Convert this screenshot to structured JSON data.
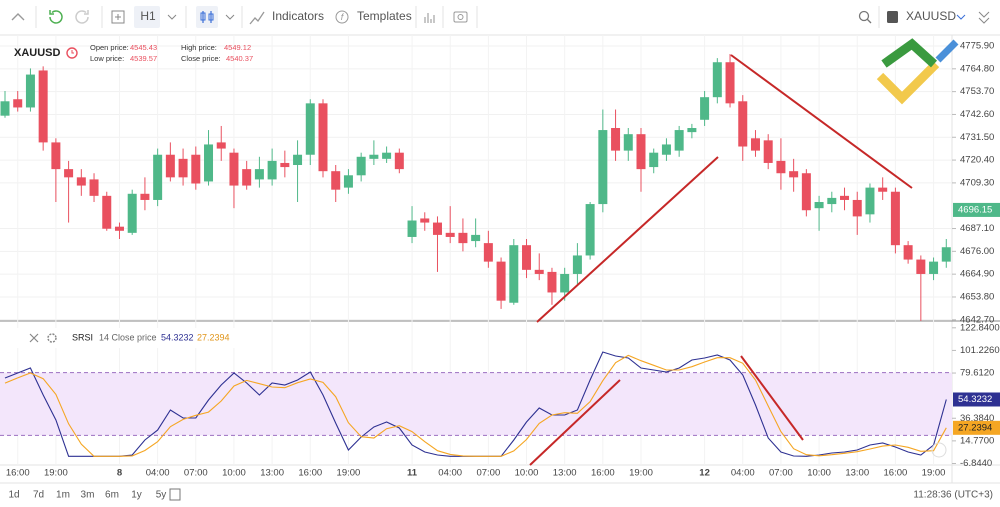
{
  "toolbar": {
    "timeframe": "H1",
    "indicators": "Indicators",
    "templates": "Templates",
    "symbol": "XAUUSD"
  },
  "chart_data": [
    {
      "type": "candlestick",
      "symbol": "XAUUSD",
      "info": [
        {
          "label": "Open price:",
          "value": 4545.43
        },
        {
          "label": "Low price:",
          "value": 4539.57
        },
        {
          "label": "High price:",
          "value": 4549.12
        },
        {
          "label": "Close price:",
          "value": 4540.37
        }
      ],
      "categories": [
        null,
        "16:00",
        null,
        null,
        "19:00",
        null,
        null,
        null,
        null,
        "8",
        null,
        null,
        "04:00",
        null,
        null,
        "07:00",
        null,
        null,
        "10:00",
        null,
        null,
        "13:00",
        null,
        null,
        "16:00",
        null,
        null,
        "19:00",
        null,
        null,
        null,
        null,
        "11",
        null,
        null,
        "04:00",
        null,
        null,
        "07:00",
        null,
        null,
        "10:00",
        null,
        null,
        "13:00",
        null,
        null,
        "16:00",
        null,
        null,
        "19:00",
        null,
        null,
        null,
        null,
        "12",
        null,
        null,
        "04:00",
        null,
        null,
        "07:00",
        null,
        null,
        "10:00",
        null,
        null,
        "13:00",
        null,
        null,
        "16:00",
        null,
        null,
        "19:00",
        null
      ],
      "open": [
        4742,
        4750,
        4746,
        4764,
        4729,
        4716,
        4712,
        4711,
        4703,
        4688,
        4685,
        4704,
        4701,
        4723,
        4721,
        4723,
        4710,
        4729,
        4724,
        4716,
        4711,
        4711,
        4719,
        4718,
        4723,
        4748,
        4715,
        4707,
        4713,
        4721,
        4721,
        4724,
        4683,
        4692,
        4690,
        4685,
        4685,
        4681,
        4680,
        4671,
        4651,
        4679,
        4667,
        4666,
        4656,
        4665,
        4674,
        4699,
        4736,
        4725,
        4733,
        4717,
        4723,
        4725,
        4734,
        4740,
        4751,
        4768,
        4749,
        4731,
        4730,
        4720,
        4715,
        4714,
        4697,
        4699,
        4703,
        4701,
        4694,
        4707,
        4705,
        4679,
        4672,
        4665,
        4671
      ],
      "high": [
        4754,
        4754,
        4765,
        4766,
        4731,
        4720,
        4716,
        4714,
        4705,
        4690,
        4706,
        4712,
        4726,
        4729,
        4726,
        4727,
        4735,
        4737,
        4726,
        4720,
        4722,
        4726,
        4725,
        4730,
        4750,
        4750,
        4718,
        4716,
        4724,
        4730,
        4727,
        4726,
        4698,
        4695,
        4693,
        4698,
        4692,
        4692,
        4686,
        4673,
        4682,
        4682,
        4675,
        4668,
        4668,
        4680,
        4700,
        4745,
        4745,
        4736,
        4736,
        4726,
        4731,
        4737,
        4738,
        4754,
        4770,
        4772,
        4752,
        4735,
        4733,
        4731,
        4721,
        4716,
        4703,
        4705,
        4707,
        4705,
        4709,
        4712,
        4707,
        4681,
        4674,
        4673,
        4682
      ],
      "low": [
        4741,
        4744,
        4744,
        4725,
        4700,
        4690,
        4703,
        4700,
        4686,
        4682,
        4684,
        4696,
        4698,
        4710,
        4708,
        4706,
        4708,
        4720,
        4697,
        4706,
        4707,
        4708,
        4712,
        4700,
        4718,
        4712,
        4700,
        4704,
        4710,
        4718,
        4719,
        4714,
        4680,
        4686,
        4666,
        4680,
        4676,
        4678,
        4668,
        4648,
        4650,
        4663,
        4662,
        4650,
        4652,
        4660,
        4672,
        4695,
        4720,
        4720,
        4705,
        4714,
        4720,
        4722,
        4731,
        4737,
        4748,
        4746,
        4720,
        4722,
        4716,
        4706,
        4705,
        4693,
        4686,
        4695,
        4696,
        4684,
        4690,
        4701,
        4675,
        4670,
        4640,
        4662,
        4668
      ],
      "close": [
        4749,
        4746,
        4762,
        4729,
        4716,
        4712,
        4708,
        4703,
        4687,
        4686,
        4704,
        4701,
        4723,
        4712,
        4712,
        4709,
        4728,
        4726,
        4708,
        4708,
        4716,
        4720,
        4717,
        4723,
        4748,
        4715,
        4706,
        4713,
        4722,
        4723,
        4724,
        4716,
        4691,
        4690,
        4684,
        4683,
        4680,
        4684,
        4671,
        4652,
        4679,
        4667,
        4665,
        4656,
        4665,
        4674,
        4699,
        4735,
        4725,
        4733,
        4716,
        4724,
        4728,
        4735,
        4736,
        4751,
        4768,
        4748,
        4727,
        4725,
        4719,
        4714,
        4712,
        4696,
        4700,
        4702,
        4701,
        4693,
        4707,
        4705,
        4679,
        4672,
        4665,
        4671,
        4678
      ],
      "up_color": "#4fb889",
      "down_color": "#e9505f",
      "last_price": 4696.15,
      "ylim": [
        4642.6,
        4781.25
      ],
      "yticks": [
        {
          "value": 4775.9,
          "label": "4775.90"
        },
        {
          "value": 4764.8,
          "label": "4764.80"
        },
        {
          "value": 4753.7,
          "label": "4753.70"
        },
        {
          "value": 4742.6,
          "label": "4742.60"
        },
        {
          "value": 4731.5,
          "label": "4731.50"
        },
        {
          "value": 4720.4,
          "label": "4720.40"
        },
        {
          "value": 4709.3,
          "label": "4709.30"
        },
        {
          "value": 4687.1,
          "label": "4687.10"
        },
        {
          "value": 4676,
          "label": "4676.00"
        },
        {
          "value": 4664.9,
          "label": "4664.90"
        },
        {
          "value": 4653.8,
          "label": "4653.80"
        },
        {
          "value": 4642.7,
          "label": "4642.70"
        }
      ],
      "grid": true
    },
    {
      "type": "line",
      "name": "SRSI",
      "params": "14 Close price",
      "series": [
        {
          "color": "#2e3192",
          "values": [
            74.9,
            79.6,
            84.4,
            58.6,
            34.7,
            0,
            0,
            0,
            0,
            0,
            1.3,
            15.6,
            25.1,
            44.3,
            36.6,
            36.6,
            53.8,
            68.2,
            79.6,
            70.1,
            58.6,
            70.1,
            68.2,
            73,
            80.6,
            58.6,
            31.8,
            6,
            18.5,
            28,
            32.8,
            27.1,
            10.8,
            4.1,
            1.3,
            0,
            0,
            0,
            0,
            0,
            15.6,
            32.8,
            46.2,
            39.5,
            39.5,
            44.3,
            73,
            99.7,
            95.9,
            94,
            84.4,
            82.5,
            80.6,
            84.4,
            92.1,
            94,
            96.9,
            92.1,
            77.7,
            49.1,
            17.5,
            4.1,
            0.3,
            0,
            1.3,
            3.2,
            4.1,
            6,
            10.8,
            12.7,
            8.9,
            4.1,
            1.3,
            10.8,
            54.3232
          ]
        },
        {
          "color": "#f5a623",
          "values": [
            70,
            75,
            79.6,
            74.2,
            59.2,
            31.1,
            11.6,
            0,
            0,
            0,
            0.4,
            5.6,
            14,
            28.3,
            35.3,
            39.2,
            42.3,
            52.9,
            67.2,
            72.6,
            69.4,
            66.3,
            65.6,
            70.4,
            73.9,
            70.7,
            57,
            32.1,
            18.8,
            17.5,
            26.4,
            29.3,
            23.6,
            14,
            5.4,
            1.8,
            0.4,
            0,
            0,
            0,
            5.2,
            16.1,
            31.5,
            39.5,
            41.7,
            41.1,
            52.3,
            72.3,
            89.5,
            96.5,
            91.4,
            87,
            82.5,
            82.5,
            85.7,
            90.2,
            94.3,
            94.3,
            88.9,
            73,
            48.1,
            23.6,
            7.3,
            1.5,
            0.5,
            1.5,
            2.9,
            4.4,
            7,
            9.8,
            10.8,
            8.6,
            4.8,
            5.4,
            27.2394
          ]
        }
      ],
      "bands": [
        20,
        80
      ],
      "band_color": "#f3e6fb",
      "ylim": [
        -8.3,
        128.4
      ],
      "yticks": [
        {
          "value": 122.84,
          "label": "122.8400"
        },
        {
          "value": 101.226,
          "label": "101.2260"
        },
        {
          "value": 79.612,
          "label": "79.6120"
        },
        {
          "value": 36.384,
          "label": "36.3840"
        },
        {
          "value": 14.77,
          "label": "14.7700"
        },
        {
          "value": -6.844,
          "label": "-6.8440"
        }
      ]
    }
  ],
  "range_buttons": [
    "1d",
    "7d",
    "1m",
    "3m",
    "6m",
    "1y",
    "5y"
  ],
  "clock": "11:28:36 (UTC+3)"
}
